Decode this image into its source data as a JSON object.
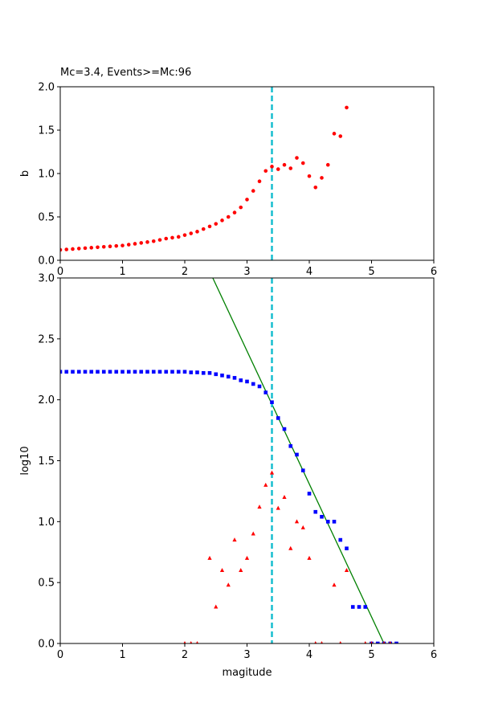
{
  "chart_data": [
    {
      "type": "scatter",
      "title": "Mc=3.4, Events>=Mc:96",
      "xlabel": "",
      "ylabel": "b",
      "xlim": [
        0,
        6
      ],
      "ylim": [
        0,
        2
      ],
      "xticks": [
        "0",
        "1",
        "2",
        "3",
        "4",
        "5",
        "6"
      ],
      "yticks": [
        "0.0",
        "0.5",
        "1.0",
        "1.5",
        "2.0"
      ],
      "grid": false,
      "mc_line": {
        "x": 3.4,
        "color": "#17becf"
      },
      "series": [
        {
          "marker": "circle",
          "color": "#ff0000",
          "x": [
            0,
            0.1,
            0.2,
            0.3,
            0.4,
            0.5,
            0.6,
            0.7,
            0.8,
            0.9,
            1.0,
            1.1,
            1.2,
            1.3,
            1.4,
            1.5,
            1.6,
            1.7,
            1.8,
            1.9,
            2.0,
            2.1,
            2.2,
            2.3,
            2.4,
            2.5,
            2.6,
            2.7,
            2.8,
            2.9,
            3.0,
            3.1,
            3.2,
            3.3,
            3.4,
            3.5,
            3.6,
            3.7,
            3.8,
            3.9,
            4.0,
            4.1,
            4.2,
            4.3,
            4.4,
            4.5,
            4.6
          ],
          "y": [
            0.12,
            0.125,
            0.13,
            0.135,
            0.14,
            0.145,
            0.15,
            0.155,
            0.16,
            0.165,
            0.17,
            0.18,
            0.19,
            0.2,
            0.21,
            0.22,
            0.235,
            0.25,
            0.26,
            0.27,
            0.29,
            0.31,
            0.33,
            0.36,
            0.39,
            0.42,
            0.46,
            0.5,
            0.55,
            0.61,
            0.7,
            0.8,
            0.91,
            1.03,
            1.08,
            1.05,
            1.1,
            1.06,
            1.18,
            1.12,
            0.97,
            0.84,
            0.95,
            1.1,
            1.46,
            1.43,
            1.76
          ]
        }
      ]
    },
    {
      "type": "scatter",
      "title": "",
      "xlabel": "magitude",
      "ylabel": "log10",
      "xlim": [
        0,
        6
      ],
      "ylim": [
        0,
        3
      ],
      "xticks": [
        "0",
        "1",
        "2",
        "3",
        "4",
        "5",
        "6"
      ],
      "yticks": [
        "0.0",
        "0.5",
        "1.0",
        "1.5",
        "2.0",
        "2.5",
        "3.0"
      ],
      "grid": false,
      "mc_line": {
        "x": 3.4,
        "color": "#17becf"
      },
      "fit_line": {
        "color": "#008000",
        "x": [
          2.45,
          5.2
        ],
        "y": [
          3.0,
          0.0
        ]
      },
      "series": [
        {
          "marker": "square",
          "color": "#0000ff",
          "x": [
            0,
            0.1,
            0.2,
            0.3,
            0.4,
            0.5,
            0.6,
            0.7,
            0.8,
            0.9,
            1.0,
            1.1,
            1.2,
            1.3,
            1.4,
            1.5,
            1.6,
            1.7,
            1.8,
            1.9,
            2.0,
            2.1,
            2.2,
            2.3,
            2.4,
            2.5,
            2.6,
            2.7,
            2.8,
            2.9,
            3.0,
            3.1,
            3.2,
            3.3,
            3.4,
            3.5,
            3.6,
            3.7,
            3.8,
            3.9,
            4.0,
            4.1,
            4.2,
            4.3,
            4.4,
            4.5,
            4.6,
            4.7,
            4.8,
            4.9,
            5.0,
            5.1,
            5.2,
            5.3,
            5.4
          ],
          "y": [
            2.23,
            2.23,
            2.23,
            2.23,
            2.23,
            2.23,
            2.23,
            2.23,
            2.23,
            2.23,
            2.23,
            2.23,
            2.23,
            2.23,
            2.23,
            2.23,
            2.23,
            2.23,
            2.23,
            2.23,
            2.23,
            2.225,
            2.225,
            2.22,
            2.22,
            2.21,
            2.2,
            2.19,
            2.18,
            2.16,
            2.15,
            2.13,
            2.11,
            2.06,
            1.98,
            1.85,
            1.76,
            1.62,
            1.55,
            1.42,
            1.23,
            1.08,
            1.04,
            1.0,
            1.0,
            0.85,
            0.78,
            0.3,
            0.3,
            0.3,
            0.0,
            0.0,
            0.0,
            0.0,
            0.0
          ]
        },
        {
          "marker": "triangle",
          "color": "#ff0000",
          "x": [
            2.0,
            2.1,
            2.2,
            2.4,
            2.5,
            2.6,
            2.7,
            2.8,
            2.9,
            3.0,
            3.1,
            3.2,
            3.3,
            3.4,
            3.5,
            3.6,
            3.7,
            3.8,
            3.9,
            4.0,
            4.1,
            4.2,
            4.4,
            4.5,
            4.6,
            4.9,
            5.0,
            5.2,
            5.3
          ],
          "y": [
            0.0,
            0.0,
            0.0,
            0.7,
            0.3,
            0.6,
            0.48,
            0.85,
            0.6,
            0.7,
            0.9,
            1.12,
            1.3,
            1.4,
            1.11,
            1.2,
            0.78,
            1.0,
            0.95,
            0.7,
            0.0,
            0.0,
            0.48,
            0.0,
            0.6,
            0.0,
            0.0,
            0.0,
            0.0
          ]
        }
      ]
    }
  ]
}
